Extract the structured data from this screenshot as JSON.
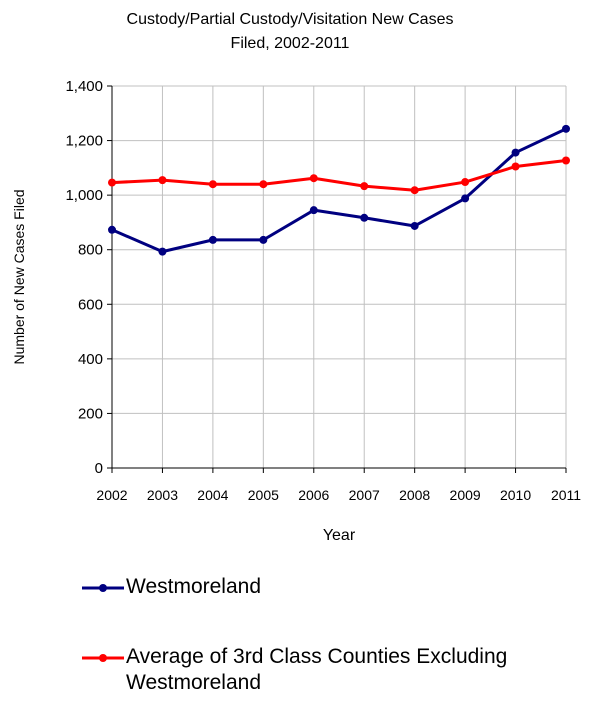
{
  "chart_data": {
    "type": "line",
    "title_line1": "Custody/Partial Custody/Visitation New  Cases",
    "title_line2": "Filed, 2002-2011",
    "xlabel": "Year",
    "ylabel": "Number of New Cases Filed",
    "x": [
      "2002",
      "2003",
      "2004",
      "2005",
      "2006",
      "2007",
      "2008",
      "2009",
      "2010",
      "2011"
    ],
    "ylim": [
      0,
      1400
    ],
    "yticks": [
      0,
      200,
      400,
      600,
      800,
      1000,
      1200,
      1400
    ],
    "ytick_labels": [
      "0",
      "200",
      "400",
      "600",
      "800",
      "1,000",
      "1,200",
      "1,400"
    ],
    "grid": true,
    "legend_position": "bottom",
    "series": [
      {
        "name": "Westmoreland",
        "color": "#000080",
        "values": [
          873,
          793,
          836,
          836,
          945,
          917,
          887,
          988,
          1156,
          1243
        ]
      },
      {
        "name": "Average of 3rd Class Counties Excluding Westmoreland",
        "name_line1": "Average of 3rd Class Counties Excluding",
        "name_line2": "Westmoreland",
        "color": "#ff0000",
        "values": [
          1046,
          1055,
          1040,
          1040,
          1062,
          1033,
          1018,
          1048,
          1105,
          1127
        ]
      }
    ]
  }
}
